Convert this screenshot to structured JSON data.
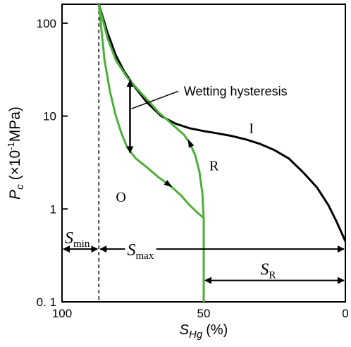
{
  "chart_data": {
    "type": "line",
    "title": "",
    "xlabel": {
      "main": "S",
      "sub": "Hg",
      "unit": "(%)"
    },
    "ylabel": {
      "main": "P",
      "sub": "c",
      "unit_prefix": "(×10",
      "unit_exp": "-1",
      "unit_suffix": "MPa)"
    },
    "x_reversed": true,
    "xlim": [
      100,
      0
    ],
    "ylim": [
      0.1,
      160
    ],
    "y_scale": "log",
    "x_ticks": [
      {
        "value": 100,
        "label": "100"
      },
      {
        "value": 50,
        "label": "50"
      },
      {
        "value": 0,
        "label": "0"
      }
    ],
    "y_ticks": [
      {
        "value": 100,
        "label": "100"
      },
      {
        "value": 10,
        "label": "10"
      },
      {
        "value": 1,
        "label": "1"
      },
      {
        "value": 0.1,
        "label": "0. 1"
      }
    ],
    "series": [
      {
        "key": "I",
        "name": "I",
        "color": "#000000",
        "points": [
          [
            87,
            160
          ],
          [
            84,
            80
          ],
          [
            81,
            45
          ],
          [
            78,
            30
          ],
          [
            74,
            20
          ],
          [
            70,
            14
          ],
          [
            65,
            10
          ],
          [
            60,
            8.3
          ],
          [
            55,
            7.4
          ],
          [
            50,
            6.9
          ],
          [
            45,
            6.5
          ],
          [
            40,
            6.1
          ],
          [
            35,
            5.6
          ],
          [
            30,
            5.0
          ],
          [
            25,
            4.3
          ],
          [
            20,
            3.5
          ],
          [
            15,
            2.5
          ],
          [
            10,
            1.7
          ],
          [
            6,
            1.1
          ],
          [
            3,
            0.72
          ],
          [
            0,
            0.45
          ]
        ]
      },
      {
        "key": "R",
        "name": "R",
        "color": "#4caf3a",
        "points": [
          [
            87,
            160
          ],
          [
            84,
            70
          ],
          [
            81,
            40
          ],
          [
            77,
            26
          ],
          [
            73,
            19
          ],
          [
            69,
            14
          ],
          [
            66,
            11
          ],
          [
            63,
            9.2
          ],
          [
            60,
            7.6
          ],
          [
            57,
            6.3
          ],
          [
            55,
            5.2
          ],
          [
            53,
            3.8
          ],
          [
            51.5,
            2.5
          ],
          [
            50.5,
            1.5
          ],
          [
            50,
            0.8
          ],
          [
            50,
            0.55
          ],
          [
            50,
            0.3
          ],
          [
            50,
            0.1
          ]
        ]
      },
      {
        "key": "O",
        "name": "O",
        "color": "#4caf3a",
        "points": [
          [
            87,
            160
          ],
          [
            86,
            80
          ],
          [
            85,
            40
          ],
          [
            83,
            18
          ],
          [
            81,
            10
          ],
          [
            79,
            6.5
          ],
          [
            77,
            4.6
          ],
          [
            74,
            3.5
          ],
          [
            70,
            2.8
          ],
          [
            66,
            2.2
          ],
          [
            62,
            1.8
          ],
          [
            58,
            1.4
          ],
          [
            55,
            1.1
          ],
          [
            52,
            0.9
          ],
          [
            50,
            0.8
          ]
        ]
      }
    ],
    "annotations": {
      "wetting_hysteresis": "Wetting hysteresis",
      "label_I": "I",
      "label_R": "R",
      "label_O": "O",
      "s_min": {
        "main": "S",
        "sub": "min"
      },
      "s_max": {
        "main": "S",
        "sub": "max"
      },
      "s_r": {
        "main": "S",
        "sub": "R"
      }
    },
    "hysteresis_arrow": {
      "x": 76,
      "y_top": 25,
      "y_bottom": 3.9
    },
    "s_min_x": 87,
    "dimension_y": {
      "s_min_s_max": 0.37,
      "s_r": 0.17
    },
    "grid": false,
    "legend": "none"
  }
}
